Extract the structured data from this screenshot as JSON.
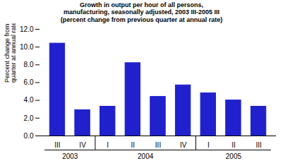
{
  "chart_data": {
    "type": "bar",
    "title": "Growth in output per hour of all persons,\nmanufacturing, seasonally adjusted, 2003 III-2005 III\n(percent change from previous quarter at annual rate)",
    "ylabel": "Percent change from previous\nquarter at annual rate",
    "categories": [
      "III",
      "IV",
      "I",
      "II",
      "III",
      "IV",
      "I",
      "II",
      "III"
    ],
    "values": [
      10.4,
      2.9,
      3.3,
      8.2,
      4.4,
      5.7,
      4.8,
      4.0,
      3.3
    ],
    "color": "#2020cc",
    "ylim": [
      0.0,
      12.0
    ],
    "yticks": [
      {
        "value": 0.0,
        "label": "0.0"
      },
      {
        "value": 2.0,
        "label": "2.0"
      },
      {
        "value": 4.0,
        "label": "4.0"
      },
      {
        "value": 6.0,
        "label": "6.0"
      },
      {
        "value": 8.0,
        "label": "8.0"
      },
      {
        "value": 10.0,
        "label": "10.0"
      },
      {
        "value": 12.0,
        "label": "12.0"
      }
    ],
    "annotations": [
      {
        "text": "2003",
        "x": [
          -0.5,
          1.5
        ]
      },
      {
        "text": "2004",
        "x": [
          1.5,
          5.5
        ]
      },
      {
        "text": "2005",
        "x": [
          5.5,
          8.5
        ]
      }
    ],
    "grid": false
  }
}
